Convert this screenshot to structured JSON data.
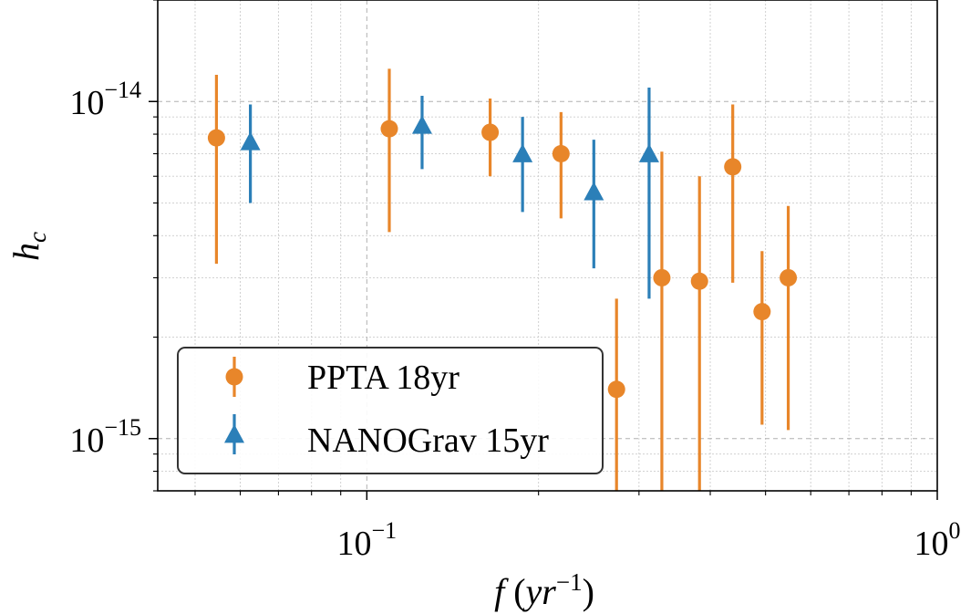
{
  "chart_data": {
    "type": "scatter",
    "title": "",
    "xlabel": "f (yr⁻¹)",
    "ylabel": "h_c",
    "x_scale": "log",
    "y_scale": "log",
    "xlim": [
      0.043,
      1.0
    ],
    "ylim": [
      7e-16,
      2e-14
    ],
    "grid": true,
    "legend_position": "lower-left",
    "x_ticks": [
      {
        "value": 0.1,
        "base": "10",
        "exp": "−1"
      },
      {
        "value": 1.0,
        "base": "10",
        "exp": "0"
      }
    ],
    "y_ticks": [
      {
        "value": 1e-14,
        "base": "10",
        "exp": "−14"
      },
      {
        "value": 1e-15,
        "base": "10",
        "exp": "−15"
      }
    ],
    "series": [
      {
        "name": "PPTA 18yr",
        "color": "#e8862a",
        "marker": "circle",
        "points": [
          {
            "x": 0.0545,
            "y": 7.8e-15,
            "lo": 3.3e-15,
            "hi": 1.2e-14
          },
          {
            "x": 0.1095,
            "y": 8.3e-15,
            "lo": 4.1e-15,
            "hi": 1.25e-14
          },
          {
            "x": 0.1645,
            "y": 8.1e-15,
            "lo": 6e-15,
            "hi": 1.02e-14
          },
          {
            "x": 0.219,
            "y": 7e-15,
            "lo": 4.5e-15,
            "hi": 9.3e-15
          },
          {
            "x": 0.274,
            "y": 1.4e-15,
            "lo": 5e-16,
            "hi": 2.6e-15
          },
          {
            "x": 0.329,
            "y": 3e-15,
            "lo": 5e-16,
            "hi": 7.1e-15
          },
          {
            "x": 0.383,
            "y": 2.93e-15,
            "lo": 5e-16,
            "hi": 6e-15
          },
          {
            "x": 0.438,
            "y": 6.4e-15,
            "lo": 2.9e-15,
            "hi": 9.8e-15
          },
          {
            "x": 0.493,
            "y": 2.38e-15,
            "lo": 1.1e-15,
            "hi": 3.6e-15
          },
          {
            "x": 0.548,
            "y": 3e-15,
            "lo": 1.06e-15,
            "hi": 4.9e-15
          }
        ]
      },
      {
        "name": "NANOGrav 15yr",
        "color": "#2b7fb8",
        "marker": "triangle",
        "points": [
          {
            "x": 0.0625,
            "y": 7.6e-15,
            "lo": 5e-15,
            "hi": 9.8e-15
          },
          {
            "x": 0.125,
            "y": 8.5e-15,
            "lo": 6.3e-15,
            "hi": 1.04e-14
          },
          {
            "x": 0.1875,
            "y": 7e-15,
            "lo": 4.7e-15,
            "hi": 9e-15
          },
          {
            "x": 0.25,
            "y": 5.4e-15,
            "lo": 3.2e-15,
            "hi": 7.7e-15
          },
          {
            "x": 0.3125,
            "y": 7e-15,
            "lo": 2.6e-15,
            "hi": 1.1e-14
          }
        ]
      }
    ]
  }
}
